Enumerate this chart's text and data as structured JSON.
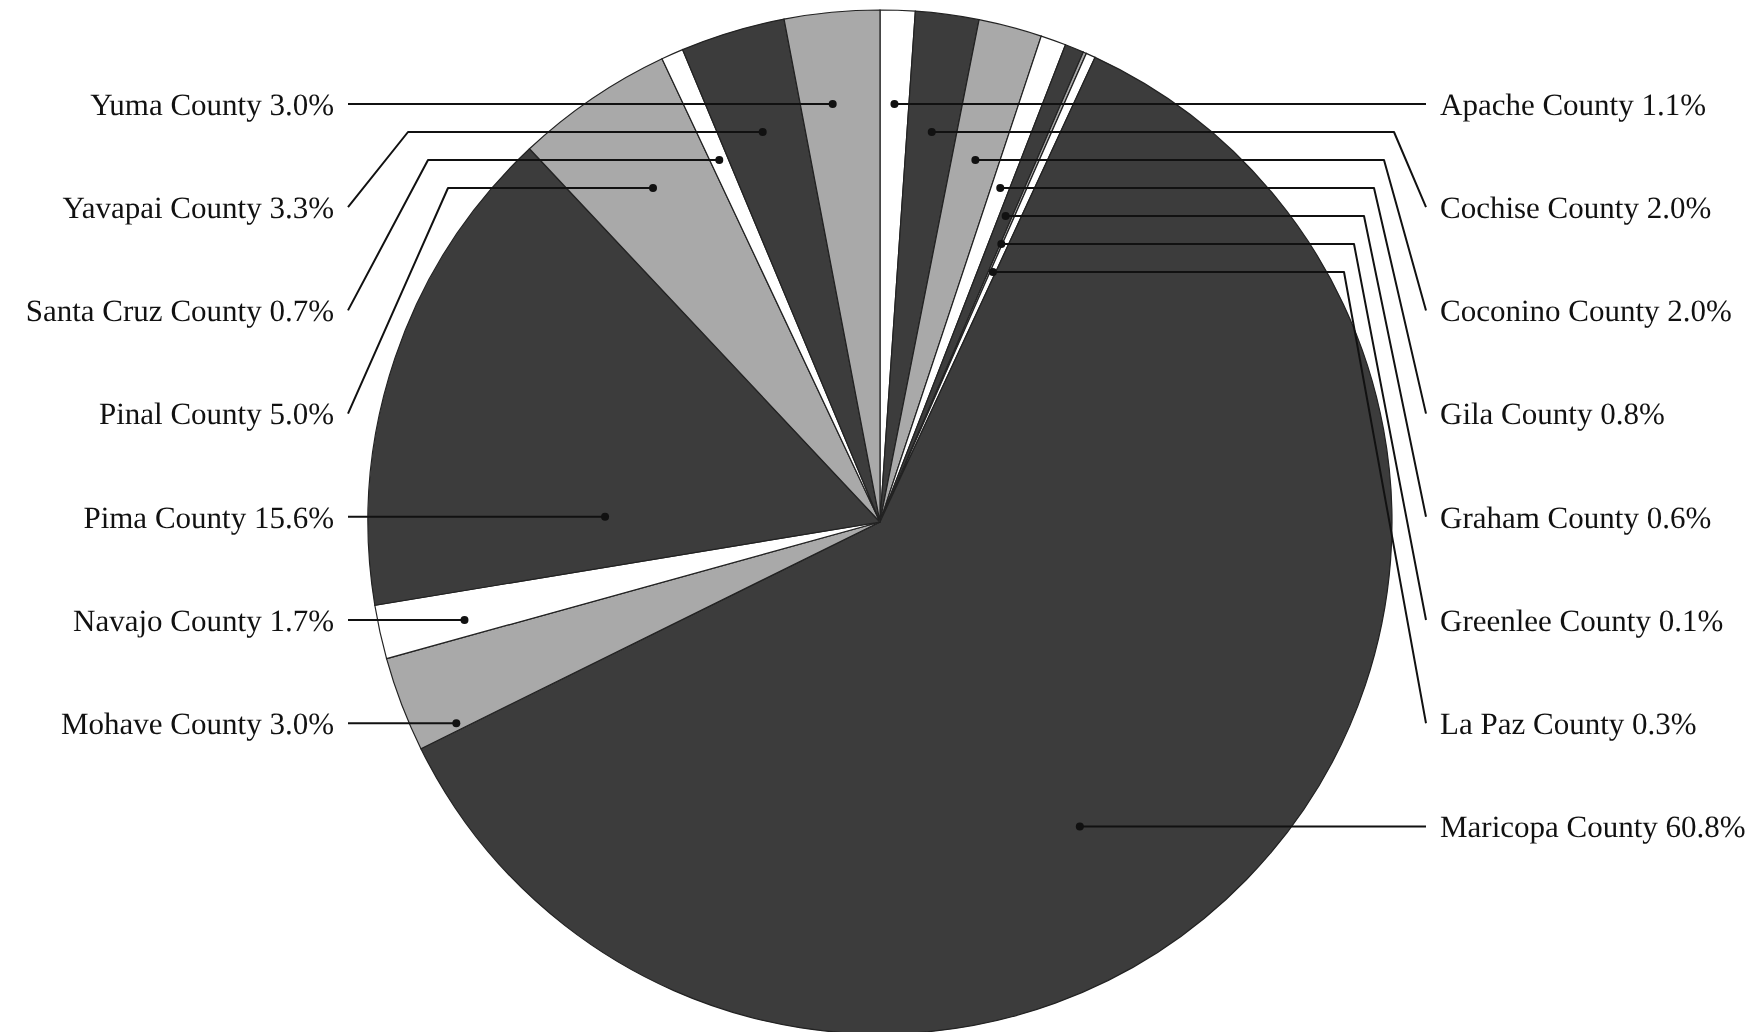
{
  "chart_data": {
    "type": "pie",
    "categories": [
      "Apache County 1.1%",
      "Cochise County 2.0%",
      "Coconino County 2.0%",
      "Gila County 0.8%",
      "Graham County 0.6%",
      "Greenlee County 0.1%",
      "La Paz County 0.3%",
      "Maricopa County 60.8%",
      "Mohave County 3.0%",
      "Navajo County 1.7%",
      "Pima County 15.6%",
      "Pinal County 5.0%",
      "Santa Cruz County 0.7%",
      "Yavapai County 3.3%",
      "Yuma County 3.0%"
    ],
    "values": [
      1.1,
      2.0,
      2.0,
      0.8,
      0.6,
      0.1,
      0.3,
      60.8,
      3.0,
      1.7,
      15.6,
      5.0,
      0.7,
      3.3,
      3.0
    ],
    "colors": [
      "#ffffff",
      "#3c3c3c",
      "#a9a9a9",
      "#ffffff",
      "#3c3c3c",
      "#a9a9a9",
      "#ffffff",
      "#3c3c3c",
      "#a9a9a9",
      "#ffffff",
      "#3c3c3c",
      "#a9a9a9",
      "#ffffff",
      "#3c3c3c",
      "#a9a9a9"
    ]
  }
}
